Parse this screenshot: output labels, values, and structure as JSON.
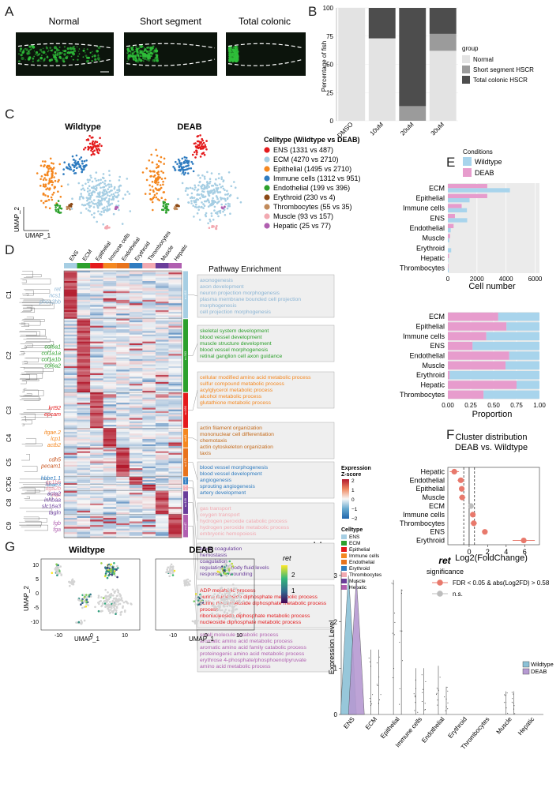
{
  "panel_labels": {
    "A": "A",
    "B": "B",
    "C": "C",
    "D": "D",
    "E": "E",
    "F": "F",
    "G": "G",
    "H": "H"
  },
  "panel_a": {
    "titles": [
      "Normal",
      "Short segment",
      "Total colonic"
    ],
    "colors": {
      "bg": "#0c140c",
      "gut": "#2fbf3a"
    }
  },
  "chart_data": [
    {
      "id": "B",
      "type": "bar",
      "stacked": true,
      "categories": [
        "DMSO",
        "10uM",
        "20uM",
        "30uM"
      ],
      "series": [
        {
          "name": "Normal",
          "color": "#e3e3e3",
          "values": [
            100,
            73,
            0,
            62
          ]
        },
        {
          "name": "Short segment HSCR",
          "color": "#9b9b9b",
          "values": [
            0,
            0,
            13,
            15
          ]
        },
        {
          "name": "Total colonic HSCR",
          "color": "#4d4d4d",
          "values": [
            0,
            27,
            87,
            23
          ]
        }
      ],
      "ylabel": "Percentage of fish",
      "yticks": [
        0,
        25,
        50,
        75,
        100
      ],
      "ylim": [
        0,
        100
      ],
      "legend_title": "group"
    },
    {
      "id": "E-top",
      "type": "bar",
      "orientation": "horizontal",
      "legend_title": "Conditions",
      "categories": [
        "ECM",
        "Epithelial",
        "Immune cells",
        "ENS",
        "Endothelial",
        "Muscle",
        "Erythroid",
        "Hepatic",
        "Thrombocytes"
      ],
      "series": [
        {
          "name": "Wildtype",
          "color": "#a8d4ec",
          "values": [
            4270,
            1495,
            1312,
            1331,
            199,
            93,
            230,
            25,
            55
          ]
        },
        {
          "name": "DEAB",
          "color": "#e79ccd",
          "values": [
            2710,
            2710,
            951,
            487,
            396,
            157,
            4,
            77,
            35
          ]
        }
      ],
      "xlabel": "Cell number",
      "xticks": [
        0,
        2000,
        4000,
        6000
      ],
      "xlim": [
        0,
        6300
      ]
    },
    {
      "id": "E-bottom",
      "type": "bar",
      "orientation": "horizontal",
      "stacked": true,
      "categories": [
        "ECM",
        "Epithelial",
        "Immune cells",
        "ENS",
        "Endothelial",
        "Muscle",
        "Erythroid",
        "Hepatic",
        "Thrombocytes"
      ],
      "series": [
        {
          "name": "DEAB",
          "color": "#e79ccd",
          "values": [
            0.55,
            0.64,
            0.42,
            0.27,
            0.67,
            0.63,
            0.02,
            0.75,
            0.39
          ]
        },
        {
          "name": "Wildtype",
          "color": "#a8d4ec",
          "values": [
            0.45,
            0.36,
            0.58,
            0.73,
            0.33,
            0.37,
            0.98,
            0.25,
            0.61
          ]
        }
      ],
      "xlabel": "Proportion",
      "xticks": [
        "0.00",
        "0.25",
        "0.50",
        "0.75",
        "1.00"
      ],
      "xlim": [
        0,
        1
      ]
    },
    {
      "id": "F",
      "type": "scatter",
      "title_lines": [
        "Cluster distribution",
        "DEAB vs. Wildtype"
      ],
      "categories": [
        "Hepatic",
        "Endothelial",
        "Epithelial",
        "Muscle",
        "ECM",
        "Immune cells",
        "Thrombocytes",
        "ENS",
        "Erythroid"
      ],
      "x": [
        -1.6,
        -0.9,
        -0.8,
        -0.75,
        0.2,
        0.4,
        0.5,
        1.7,
        5.9
      ],
      "xerr": [
        0.5,
        0.35,
        0.3,
        0.35,
        0.15,
        0.2,
        0.35,
        0.3,
        1.2
      ],
      "significant": [
        true,
        true,
        true,
        true,
        false,
        true,
        true,
        true,
        true
      ],
      "xlabel": "Log2(FoldChange)",
      "xticks": [
        0,
        2,
        4,
        6
      ],
      "xlim": [
        -2.3,
        7.6
      ],
      "vlines": [
        -0.58,
        0,
        0.58
      ],
      "colors": {
        "sig": "#e8796c",
        "ns": "#bdbdbd"
      }
    },
    {
      "id": "H",
      "type": "violin",
      "title": "ret",
      "ylabel": "Expression Level",
      "yticks": [
        0,
        1,
        2,
        3
      ],
      "ylim": [
        0,
        3.1
      ],
      "categories": [
        "ENS",
        "ECM",
        "Epithelial",
        "Immune cells",
        "Endothelial",
        "Erythroid",
        "Thrombocytes",
        "Muscle",
        "Hepatic"
      ],
      "max_wildtype": [
        3.0,
        1.4,
        2.9,
        1.0,
        1.05,
        0,
        0,
        0.5,
        0
      ],
      "max_deab": [
        2.9,
        1.4,
        2.7,
        1.0,
        0.6,
        0,
        0,
        0.5,
        0
      ],
      "legend": [
        "Wildtype",
        "DEAB"
      ]
    }
  ],
  "panel_c": {
    "titles": [
      "Wildtype",
      "DEAB"
    ],
    "axis_x": "UMAP_1",
    "axis_y": "UMAP_2",
    "legend_title": "Celltype (Wildtype vs DEAB)",
    "legend": [
      {
        "label": "ENS (1331 vs 487)",
        "color": "#e41a1c"
      },
      {
        "label": "ECM (4270 vs 2710)",
        "color": "#a6cee3"
      },
      {
        "label": "Epithelial (1495 vs 2710)",
        "color": "#f4871f"
      },
      {
        "label": "Immune cells (1312 vs 951)",
        "color": "#2f7cc0"
      },
      {
        "label": "Endothelial (199 vs 396)",
        "color": "#2ca02c"
      },
      {
        "label": "Erythroid (230 vs 4)",
        "color": "#8c4a17"
      },
      {
        "label": "Thrombocytes (55 vs 35)",
        "color": "#c18a5a"
      },
      {
        "label": "Muscle (93 vs 157)",
        "color": "#f2a9b1"
      },
      {
        "label": "Hepatic (25 vs 77)",
        "color": "#b05fb0"
      }
    ]
  },
  "panel_d": {
    "col_labels": [
      "ENS",
      "ECM",
      "Epithelial",
      "Immune cells",
      "Endothelial",
      "Erythroid",
      "Thrombocytes",
      "Muscle",
      "Hepatic"
    ],
    "col_colors": [
      "#a6cee3",
      "#2ca02c",
      "#e41a1c",
      "#f4871f",
      "#e8731c",
      "#2f7cc0",
      "#f2a9b1",
      "#6a3d9a",
      "#b05fb0"
    ],
    "pathway_title": "Pathway Enrichment",
    "clusters": [
      {
        "label": "C1",
        "n": "n=415",
        "color": "#a6cee3",
        "genes": [
          "ret",
          "ncs1",
          "phox2bb"
        ],
        "gene_color": "#8ab4d4",
        "terms": [
          "axonogenesis",
          "axon development",
          "neuron projection morphogenesis",
          "plasma membrane bounded cell projection",
          "morphogenesis",
          "cell projection morphogenesis"
        ],
        "term_color": "#8ab4d4"
      },
      {
        "label": "C2",
        "n": "n=303",
        "color": "#2ca02c",
        "genes": [
          "col6a1",
          "col1a1a",
          "col1a1b",
          "col6a2"
        ],
        "gene_color": "#2ca02c",
        "terms": [
          "skeletal system development",
          "blood vessel development",
          "muscle structure development",
          "blood vessel morphogenesis",
          "retinal ganglion cell axon guidance"
        ],
        "term_color": "#2ca02c"
      },
      {
        "label": "C3",
        "n": "n=160",
        "color": "#e41a1c",
        "genes": [
          "krt92",
          "epcam"
        ],
        "gene_color": "#e41a1c",
        "terms": [
          "cellular modified amino acid metabolic process",
          "sulfur compound metabolic process",
          "acylglycerol metabolic process",
          "alcohol metabolic process",
          "glutathione metabolic process"
        ],
        "term_color": "#f4871f"
      },
      {
        "label": "C4",
        "n": "n=81",
        "color": "#f4871f",
        "genes": [
          "itgae.2",
          "lcp1",
          "actb2"
        ],
        "gene_color": "#f4871f",
        "terms": [
          "actin filament organization",
          "mononuclear cell differentiation",
          "chemotaxis",
          "actin cytoskeleton organization",
          "taxis"
        ],
        "term_color": "#c46a1a"
      },
      {
        "label": "C5",
        "n": "n=171",
        "color": "#e8731c",
        "genes": [
          "cdh5",
          "pecam1"
        ],
        "gene_color": "#c9531c",
        "terms": [
          "blood vessel morphogenesis",
          "blood vessel development",
          "angiogenesis",
          "sprouting angiogenesis",
          "artery development"
        ],
        "term_color": "#2f7cc0"
      },
      {
        "label": "C6",
        "n": "n=9",
        "color": "#2f7cc0",
        "genes": [
          "hbbe1.1",
          "hbae3"
        ],
        "gene_color": "#2f7cc0",
        "terms": [
          "gas transport",
          "oxygen transport",
          "hydrogen peroxide catabolic process",
          "hydrogen peroxide metabolic process",
          "embryonic hemopoiesis"
        ],
        "term_color": "#f2a9b1"
      },
      {
        "label": "C7",
        "n": "n=10",
        "color": "#f2a9b1",
        "genes": [
          "gp1bb",
          "itga2b",
          "mpl"
        ],
        "gene_color": "#e88fa0",
        "terms": [
          "blood coagulation",
          "hemostasis",
          "coagulation",
          "regulation of body fluid levels",
          "response to wounding"
        ],
        "term_color": "#6a3d9a"
      },
      {
        "label": "C8",
        "n": "n=109",
        "color": "#6a3d9a",
        "genes": [
          "acta2",
          "inhbaa",
          "slc16a3",
          "tagln"
        ],
        "gene_color": "#6a3d9a",
        "terms": [
          "ADP metabolic process",
          "purine nucleoside diphosphate metabolic process",
          "purine ribonucleoside diphosphate metabolic process",
          "process",
          "ribonucleoside diphosphate metabolic process",
          "nucleoside diphosphate metabolic process"
        ],
        "term_color": "#e41a1c"
      },
      {
        "label": "C9",
        "n": "n=47",
        "color": "#b05fb0",
        "genes": [
          "fgb",
          "fga"
        ],
        "gene_color": "#b05fb0",
        "terms": [
          "small molecule catabolic process",
          "aromatic amino acid metabolic process",
          "aromatic amino acid family catabolic process",
          "proteinogenic amino acid metabolic process",
          "erythrose 4-phosphate/phosphoenolpyruvate",
          "amino acid metabolic process"
        ],
        "term_color": "#b05fb0"
      }
    ],
    "zscore_title_1": "Expression",
    "zscore_title_2": "Z-score",
    "zscore_ticks": [
      "2",
      "1",
      "0",
      "−1",
      "−2"
    ],
    "celltype_title": "Celltype"
  },
  "panel_f": {
    "significance_title": "significance",
    "sig_label": "FDR < 0.05 & abs(Log2FD) > 0.58",
    "ns_label": "n.s."
  },
  "panel_g": {
    "titles": [
      "Wildtype",
      "DEAB"
    ],
    "xlabel": "UMAP_1",
    "ylabel": "UMAP_2",
    "xticks": [
      "-10",
      "0",
      "10"
    ],
    "yticks": [
      "10",
      "5",
      "0",
      "-5",
      "-10"
    ],
    "legend_title": "ret",
    "legend_ticks": [
      "2",
      "1"
    ]
  }
}
